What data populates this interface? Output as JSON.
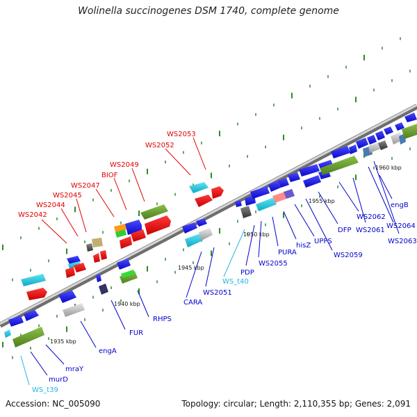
{
  "title": "Wolinella succinogenes DSM 1740, complete genome",
  "footer": {
    "accession": "Accession: NC_005090",
    "summary": "Topology: circular; Length: 2,110,355 bp; Genes: 2,091"
  },
  "colors": {
    "forward_gene": "#1414e6",
    "reverse_gene": "#e61414",
    "rna": "#20b8d8",
    "operon": "#6a9a2a",
    "axis": "#888888"
  },
  "scale_labels": [
    "1935 kbp",
    "1940 kbp",
    "1945 kbp",
    "1950 kbp",
    "1955 kbp",
    "1960 kbp"
  ],
  "gene_labels_top": [
    "WS2042",
    "WS2044",
    "WS2045",
    "WS2047",
    "BIOF",
    "WS2049",
    "WS2052",
    "WS2053"
  ],
  "gene_labels_bottom": [
    "WS_t39",
    "murD",
    "mraY",
    "engA",
    "FUR",
    "RHPS",
    "CARA",
    "WS2051",
    "WS_t40",
    "PDP",
    "WS2055",
    "PURA",
    "hisZ",
    "UPPS",
    "WS2059",
    "DFP",
    "WS2061",
    "WS2062",
    "engB",
    "WS2064",
    "WS2063"
  ]
}
